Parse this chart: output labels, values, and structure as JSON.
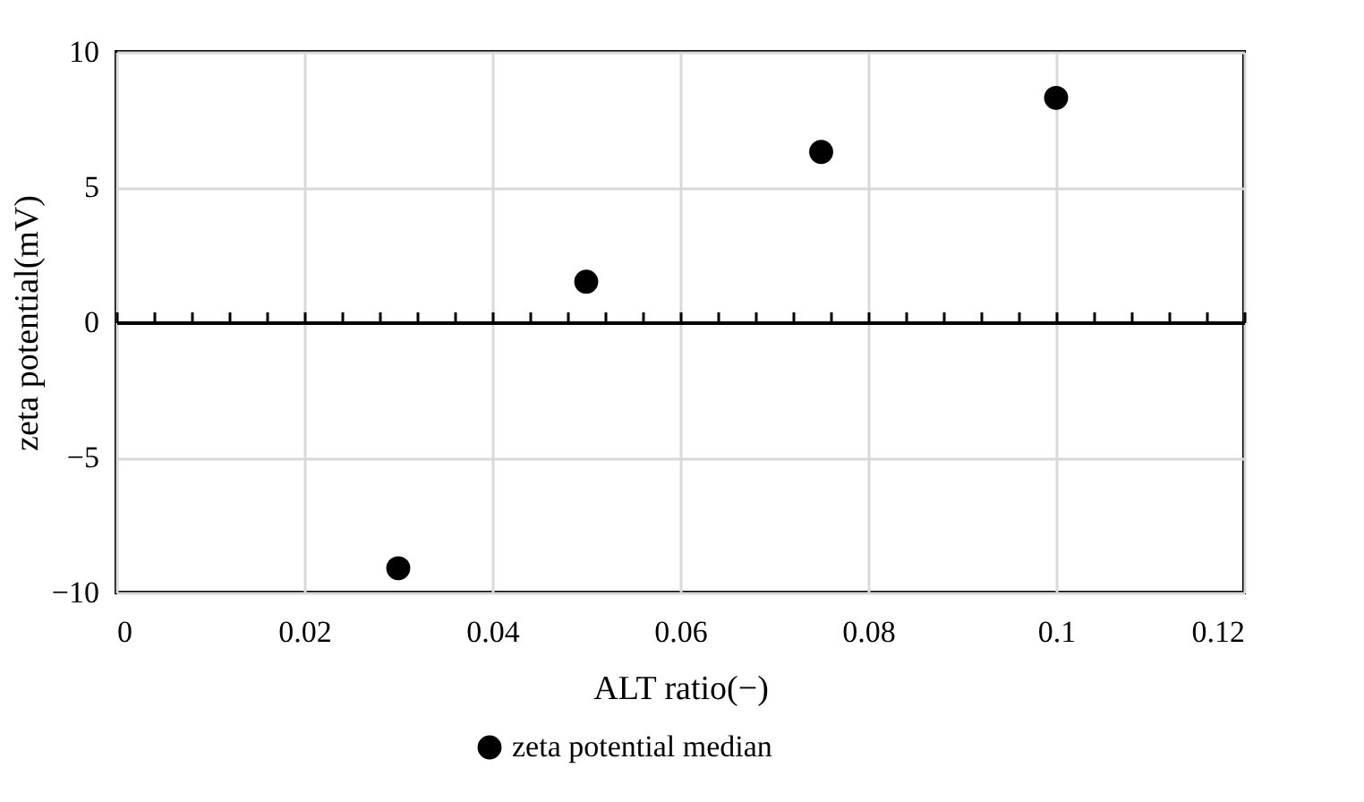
{
  "chart_data": {
    "type": "scatter",
    "xlabel": "ALT ratio(−)",
    "ylabel": "zeta potential(mV)",
    "x": [
      0.03,
      0.05,
      0.075,
      0.1
    ],
    "series": [
      {
        "name": "zeta potential median",
        "color": "#000000",
        "values": [
          -9.1,
          1.5,
          6.3,
          8.3
        ]
      }
    ],
    "xlim": [
      0,
      0.12
    ],
    "xticks": [
      0,
      {
        "value": 0.004,
        "label": null
      },
      {
        "value": 0.008,
        "label": null
      },
      {
        "value": 0.012,
        "label": null
      },
      {
        "value": 0.016,
        "label": null
      },
      0.02,
      {
        "value": 0.024,
        "label": null
      },
      {
        "value": 0.028,
        "label": null
      },
      {
        "value": 0.032,
        "label": null
      },
      {
        "value": 0.036,
        "label": null
      },
      0.04,
      {
        "value": 0.044,
        "label": null
      },
      {
        "value": 0.048,
        "label": null
      },
      {
        "value": 0.052,
        "label": null
      },
      {
        "value": 0.056,
        "label": null
      },
      0.06,
      {
        "value": 0.064,
        "label": null
      },
      {
        "value": 0.068,
        "label": null
      },
      {
        "value": 0.072,
        "label": null
      },
      {
        "value": 0.076,
        "label": null
      },
      0.08,
      {
        "value": 0.084,
        "label": null
      },
      {
        "value": 0.088,
        "label": null
      },
      {
        "value": 0.092,
        "label": null
      },
      {
        "value": 0.096,
        "label": null
      },
      0.1,
      {
        "value": 0.104,
        "label": null
      },
      {
        "value": 0.108,
        "label": null
      },
      {
        "value": 0.112,
        "label": null
      },
      {
        "value": 0.116,
        "label": null
      },
      0.12
    ],
    "ylim": [
      -10,
      10
    ],
    "yticks": [
      {
        "value": -10,
        "label": "−10"
      },
      {
        "value": -5,
        "label": "−5"
      },
      0,
      5,
      10
    ],
    "grid": true,
    "legend": "bottom",
    "marker": "circle"
  }
}
